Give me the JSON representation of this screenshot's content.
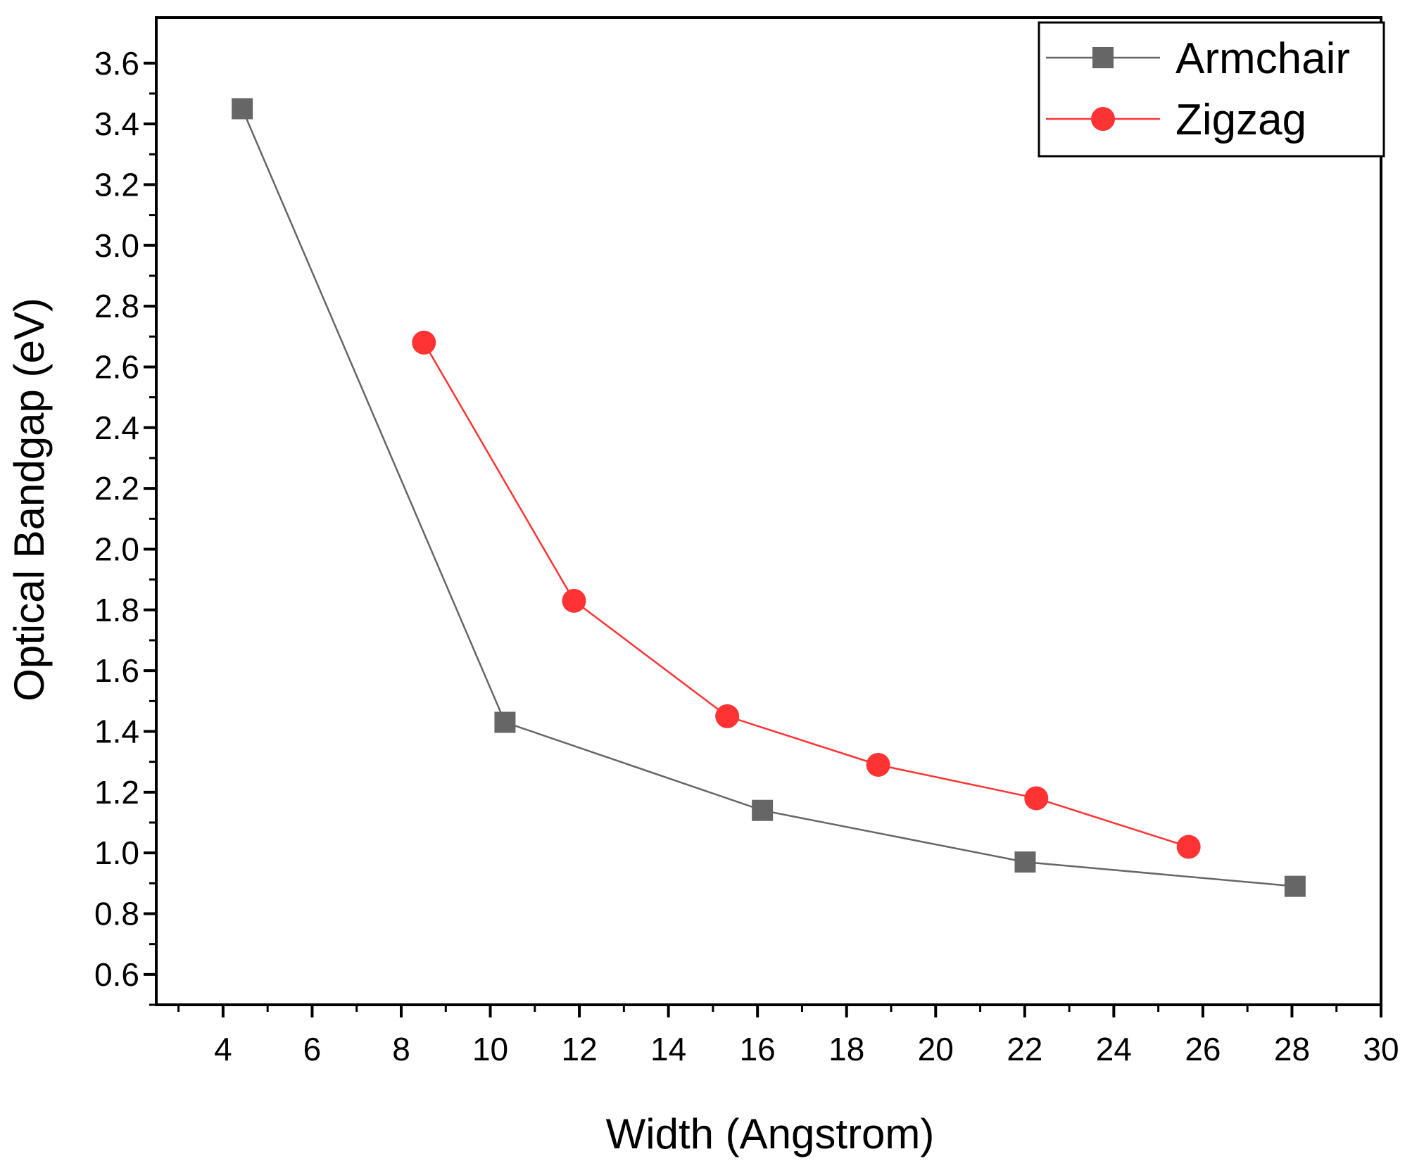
{
  "chart_data": {
    "type": "line",
    "title": "",
    "xlabel": "Width (Angstrom)",
    "ylabel": "Optical Bandgap (eV)",
    "xlim": [
      2.5,
      30
    ],
    "ylim": [
      0.5,
      3.75
    ],
    "xticks": [
      4,
      6,
      8,
      10,
      12,
      14,
      16,
      18,
      20,
      22,
      24,
      26,
      28,
      30
    ],
    "xtick_labels": [
      "4",
      "6",
      "8",
      "10",
      "12",
      "14",
      "16",
      "18",
      "20",
      "22",
      "24",
      "26",
      "28",
      "30"
    ],
    "yticks": [
      0.6,
      0.8,
      1.0,
      1.2,
      1.4,
      1.6,
      1.8,
      2.0,
      2.2,
      2.4,
      2.6,
      2.8,
      3.0,
      3.2,
      3.4,
      3.6
    ],
    "ytick_labels": [
      "0.6",
      "0.8",
      "1.0",
      "1.2",
      "1.4",
      "1.6",
      "1.8",
      "2.0",
      "2.2",
      "2.4",
      "2.6",
      "2.8",
      "3.0",
      "3.2",
      "3.4",
      "3.6"
    ],
    "grid": false,
    "legend_position": "top-right",
    "series": [
      {
        "name": "Armchair",
        "marker": "square",
        "color": "#666666",
        "x": [
          4.43,
          10.33,
          16.11,
          22.01,
          28.07
        ],
        "y": [
          3.45,
          1.43,
          1.14,
          0.97,
          0.89
        ]
      },
      {
        "name": "Zigzag",
        "marker": "circle",
        "color": "#ff3333",
        "x": [
          8.51,
          11.88,
          15.32,
          18.71,
          22.26,
          25.68
        ],
        "y": [
          2.68,
          1.83,
          1.45,
          1.29,
          1.18,
          1.02
        ]
      }
    ]
  }
}
